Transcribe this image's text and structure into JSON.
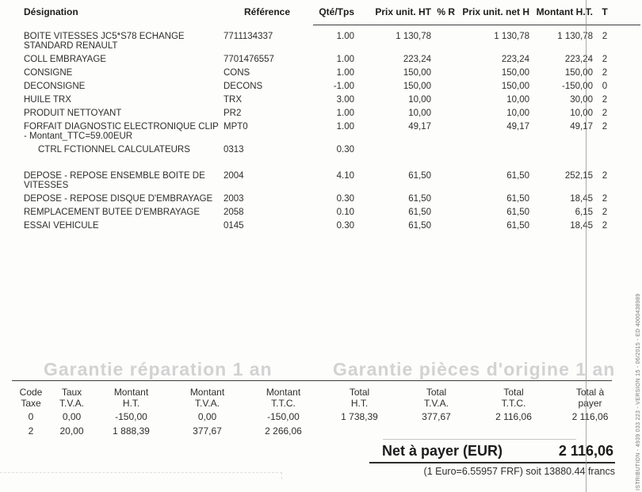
{
  "invoice": {
    "columns": {
      "designation": "Désignation",
      "reference": "Référence",
      "qty": "Qté/Tps",
      "price_ht": "Prix unit. HT",
      "pct_r": "% R",
      "price_net": "Prix unit. net H",
      "amount_ht": "Montant H.T.",
      "tax": "T"
    },
    "rows": [
      {
        "designation": "BOITE VITESSES JC5*S78 ECHANGE STANDARD RENAULT",
        "reference": "7711134337",
        "qty": "1.00",
        "price_ht": "1 130,78",
        "pct_r": "",
        "price_net": "1 130,78",
        "amount_ht": "1 130,78",
        "tax": "2"
      },
      {
        "designation": "COLL EMBRAYAGE",
        "reference": "7701476557",
        "qty": "1.00",
        "price_ht": "223,24",
        "pct_r": "",
        "price_net": "223,24",
        "amount_ht": "223,24",
        "tax": "2"
      },
      {
        "designation": "CONSIGNE",
        "reference": "CONS",
        "qty": "1.00",
        "price_ht": "150,00",
        "pct_r": "",
        "price_net": "150,00",
        "amount_ht": "150,00",
        "tax": "2"
      },
      {
        "designation": "DECONSIGNE",
        "reference": "DECONS",
        "qty": "-1.00",
        "price_ht": "150,00",
        "pct_r": "",
        "price_net": "150,00",
        "amount_ht": "-150,00",
        "tax": "0"
      },
      {
        "designation": "HUILE TRX",
        "reference": "TRX",
        "qty": "3.00",
        "price_ht": "10,00",
        "pct_r": "",
        "price_net": "10,00",
        "amount_ht": "30,00",
        "tax": "2"
      },
      {
        "designation": "PRODUIT NETTOYANT",
        "reference": "PR2",
        "qty": "1.00",
        "price_ht": "10,00",
        "pct_r": "",
        "price_net": "10,00",
        "amount_ht": "10,00",
        "tax": "2"
      },
      {
        "designation": "FORFAIT DIAGNOSTIC ELECTRONIQUE CLIP - Montant_TTC=59.00EUR",
        "reference": "MPT0",
        "qty": "1.00",
        "price_ht": "49,17",
        "pct_r": "",
        "price_net": "49,17",
        "amount_ht": "49,17",
        "tax": "2"
      },
      {
        "designation": "CTRL FCTIONNEL CALCULATEURS",
        "reference": "0313",
        "qty": "0.30",
        "price_ht": "",
        "pct_r": "",
        "price_net": "",
        "amount_ht": "",
        "tax": ""
      },
      {
        "designation": "DEPOSE - REPOSE ENSEMBLE BOITE DE VITESSES",
        "reference": "2004",
        "qty": "4.10",
        "price_ht": "61,50",
        "pct_r": "",
        "price_net": "61,50",
        "amount_ht": "252,15",
        "tax": "2"
      },
      {
        "designation": "DEPOSE - REPOSE DISQUE D'EMBRAYAGE",
        "reference": "2003",
        "qty": "0.30",
        "price_ht": "61,50",
        "pct_r": "",
        "price_net": "61,50",
        "amount_ht": "18,45",
        "tax": "2"
      },
      {
        "designation": "REMPLACEMENT BUTEE D'EMBRAYAGE",
        "reference": "2058",
        "qty": "0.10",
        "price_ht": "61,50",
        "pct_r": "",
        "price_net": "61,50",
        "amount_ht": "6,15",
        "tax": "2"
      },
      {
        "designation": "ESSAI VEHICULE",
        "reference": "0145",
        "qty": "0.30",
        "price_ht": "61,50",
        "pct_r": "",
        "price_net": "61,50",
        "amount_ht": "18,45",
        "tax": "2"
      }
    ]
  },
  "watermarks": {
    "left": "Garantie réparation 1 an",
    "right": "Garantie pièces d'origine 1 an"
  },
  "summary": {
    "headers": [
      "Code\nTaxe",
      "Taux\nT.V.A.",
      "Montant\nH.T.",
      "Montant\nT.V.A.",
      "Montant\nT.T.C.",
      "Total\nH.T.",
      "Total\nT.V.A.",
      "Total\nT.T.C.",
      "Total à\npayer"
    ],
    "rows": [
      [
        "0",
        "0,00",
        "-150,00",
        "0,00",
        "-150,00",
        "1 738,39",
        "377,67",
        "2 116,06",
        "2 116,06"
      ],
      [
        "2",
        "20,00",
        "1 888,39",
        "377,67",
        "2 266,06",
        "",
        "",
        "",
        ""
      ]
    ]
  },
  "net": {
    "label": "Net à payer (EUR)",
    "amount": "2 116,06",
    "conversion": "(1 Euro=6.55957 FRF) soit 13880.44 francs"
  },
  "side_text": "ISTRIBUTION - 4939 033 223 - VERSION 15 - 06/2015 - ED 4000438989"
}
